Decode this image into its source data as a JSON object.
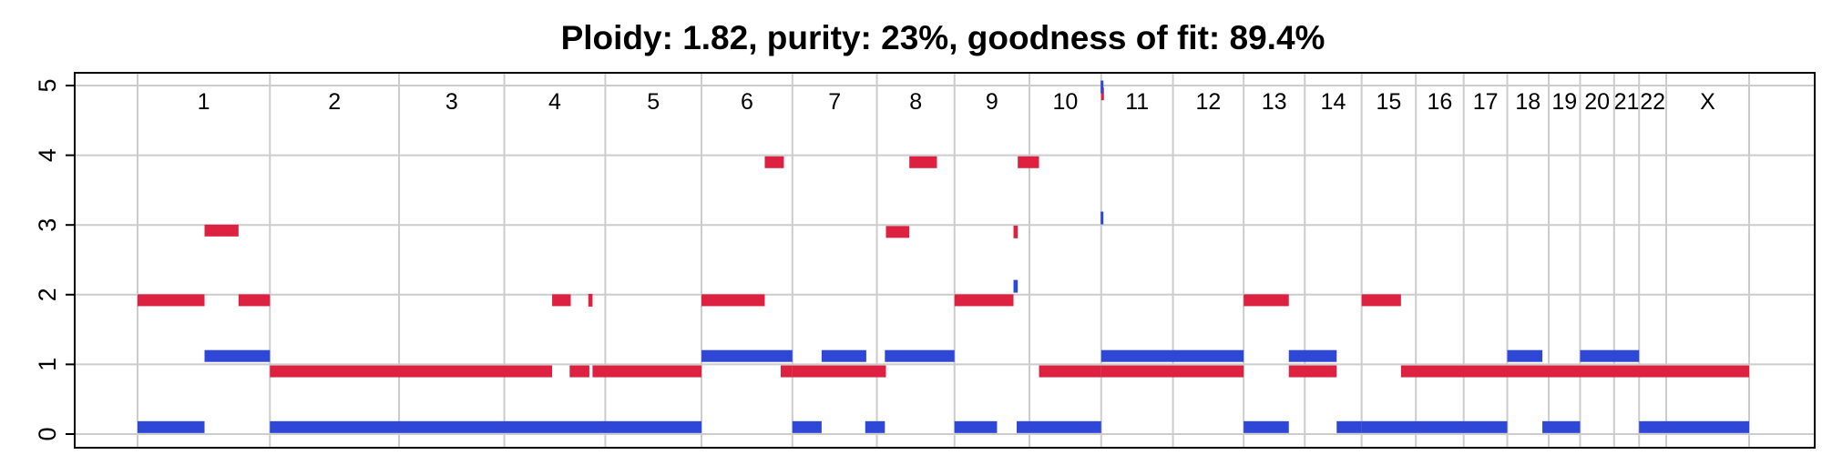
{
  "chart_data": {
    "type": "bar",
    "title": "Ploidy: 1.82, purity: 23%, goodness of fit: 89.4%",
    "xlabel": "",
    "ylabel": "",
    "ylim": [
      0,
      5
    ],
    "y_ticks": [
      "0",
      "1",
      "2",
      "3",
      "4",
      "5"
    ],
    "grid": true,
    "x_range": [
      0,
      3100
    ],
    "chromosomes": [
      {
        "label": "1",
        "start": 0,
        "end": 249
      },
      {
        "label": "2",
        "start": 249,
        "end": 492
      },
      {
        "label": "3",
        "start": 492,
        "end": 690
      },
      {
        "label": "4",
        "start": 690,
        "end": 880
      },
      {
        "label": "5",
        "start": 880,
        "end": 1061
      },
      {
        "label": "6",
        "start": 1061,
        "end": 1232
      },
      {
        "label": "7",
        "start": 1232,
        "end": 1391
      },
      {
        "label": "8",
        "start": 1391,
        "end": 1537
      },
      {
        "label": "9",
        "start": 1537,
        "end": 1678
      },
      {
        "label": "10",
        "start": 1678,
        "end": 1813
      },
      {
        "label": "11",
        "start": 1813,
        "end": 1948
      },
      {
        "label": "12",
        "start": 1948,
        "end": 2081
      },
      {
        "label": "13",
        "start": 2081,
        "end": 2196
      },
      {
        "label": "14",
        "start": 2196,
        "end": 2303
      },
      {
        "label": "15",
        "start": 2303,
        "end": 2405
      },
      {
        "label": "16",
        "start": 2405,
        "end": 2495
      },
      {
        "label": "17",
        "start": 2495,
        "end": 2577
      },
      {
        "label": "18",
        "start": 2577,
        "end": 2655
      },
      {
        "label": "19",
        "start": 2655,
        "end": 2714
      },
      {
        "label": "20",
        "start": 2714,
        "end": 2778
      },
      {
        "label": "21",
        "start": 2778,
        "end": 2825
      },
      {
        "label": "22",
        "start": 2825,
        "end": 2876
      },
      {
        "label": "X",
        "start": 2876,
        "end": 3032
      }
    ],
    "series": [
      {
        "color": "#dc2240",
        "segments": [
          {
            "start": 0,
            "end": 126,
            "value": 1.92
          },
          {
            "start": 126,
            "end": 190,
            "value": 2.92
          },
          {
            "start": 190,
            "end": 249,
            "value": 1.92
          },
          {
            "start": 249,
            "end": 780,
            "value": 0.9
          },
          {
            "start": 780,
            "end": 815,
            "value": 1.92
          },
          {
            "start": 813,
            "end": 850,
            "value": 0.9
          },
          {
            "start": 848,
            "end": 856,
            "value": 1.92
          },
          {
            "start": 856,
            "end": 1061,
            "value": 0.9
          },
          {
            "start": 1061,
            "end": 1180,
            "value": 1.92
          },
          {
            "start": 1180,
            "end": 1216,
            "value": 3.9
          },
          {
            "start": 1210,
            "end": 1232,
            "value": 0.9
          },
          {
            "start": 1232,
            "end": 1408,
            "value": 0.9
          },
          {
            "start": 1408,
            "end": 1452,
            "value": 2.9
          },
          {
            "start": 1452,
            "end": 1504,
            "value": 3.9
          },
          {
            "start": 1537,
            "end": 1648,
            "value": 1.92
          },
          {
            "start": 1648,
            "end": 1656,
            "value": 2.9
          },
          {
            "start": 1656,
            "end": 1696,
            "value": 3.9
          },
          {
            "start": 1696,
            "end": 1813,
            "value": 0.9
          },
          {
            "start": 1813,
            "end": 1815,
            "value": 4.88
          },
          {
            "start": 1813,
            "end": 2081,
            "value": 0.9
          },
          {
            "start": 2081,
            "end": 2166,
            "value": 1.92
          },
          {
            "start": 2166,
            "end": 2256,
            "value": 0.9
          },
          {
            "start": 2303,
            "end": 2377,
            "value": 1.92
          },
          {
            "start": 2377,
            "end": 3032,
            "value": 0.9
          }
        ]
      },
      {
        "color": "#2f47d6",
        "segments": [
          {
            "start": 0,
            "end": 126,
            "value": 0.1
          },
          {
            "start": 126,
            "end": 249,
            "value": 1.12
          },
          {
            "start": 249,
            "end": 1061,
            "value": 0.1
          },
          {
            "start": 1061,
            "end": 1232,
            "value": 1.12
          },
          {
            "start": 1232,
            "end": 1287,
            "value": 0.1
          },
          {
            "start": 1287,
            "end": 1371,
            "value": 1.12
          },
          {
            "start": 1369,
            "end": 1406,
            "value": 0.1
          },
          {
            "start": 1406,
            "end": 1537,
            "value": 1.12
          },
          {
            "start": 1537,
            "end": 1617,
            "value": 0.1
          },
          {
            "start": 1648,
            "end": 1656,
            "value": 2.12
          },
          {
            "start": 1654,
            "end": 1813,
            "value": 0.1
          },
          {
            "start": 1812,
            "end": 1815,
            "value": 4.98
          },
          {
            "start": 1812,
            "end": 1815,
            "value": 3.1
          },
          {
            "start": 1813,
            "end": 2081,
            "value": 1.12
          },
          {
            "start": 2081,
            "end": 2166,
            "value": 0.1
          },
          {
            "start": 2166,
            "end": 2256,
            "value": 1.12
          },
          {
            "start": 2256,
            "end": 2303,
            "value": 0.1
          },
          {
            "start": 2303,
            "end": 2577,
            "value": 0.1
          },
          {
            "start": 2577,
            "end": 2643,
            "value": 1.12
          },
          {
            "start": 2643,
            "end": 2714,
            "value": 0.1
          },
          {
            "start": 2714,
            "end": 2825,
            "value": 1.12
          },
          {
            "start": 2825,
            "end": 3032,
            "value": 0.1
          }
        ]
      }
    ]
  }
}
